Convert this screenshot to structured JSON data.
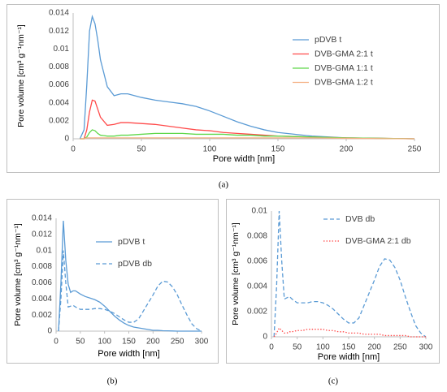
{
  "chart_data": [
    {
      "type": "line",
      "caption": "(a)",
      "xlabel": "Pore width [nm]",
      "ylabel": "Pore volume [cm³ g⁻¹nm⁻¹]",
      "x": [
        5,
        8,
        10,
        12,
        14,
        16,
        18,
        20,
        25,
        30,
        35,
        40,
        50,
        60,
        70,
        80,
        90,
        100,
        110,
        120,
        130,
        140,
        150,
        175,
        200,
        225,
        250
      ],
      "xlim": [
        0,
        250
      ],
      "xticks": [
        0,
        50,
        100,
        150,
        200,
        250
      ],
      "ylim": [
        0,
        0.014
      ],
      "yticks": [
        0,
        0.002,
        0.004,
        0.006,
        0.008,
        0.01,
        0.012,
        0.014
      ],
      "series": [
        {
          "name": "pDVB t",
          "color": "#5b9bd5",
          "line_style": "solid",
          "values": [
            0,
            0.001,
            0.006,
            0.012,
            0.0136,
            0.0128,
            0.011,
            0.0088,
            0.0058,
            0.0048,
            0.005,
            0.005,
            0.0046,
            0.0043,
            0.0041,
            0.0039,
            0.0036,
            0.0031,
            0.0025,
            0.0019,
            0.0014,
            0.001,
            0.0007,
            0.0003,
            0.0001,
            4e-05,
            0
          ]
        },
        {
          "name": "DVB-GMA 2:1 t",
          "color": "#ff4b4b",
          "line_style": "solid",
          "values": [
            0,
            0,
            0.001,
            0.003,
            0.0043,
            0.0042,
            0.0033,
            0.0024,
            0.0015,
            0.0016,
            0.0018,
            0.0018,
            0.0017,
            0.0016,
            0.0014,
            0.0012,
            0.001,
            0.0009,
            0.0007,
            0.0006,
            0.0005,
            0.0004,
            0.0003,
            0.0002,
            0.0001,
            5e-05,
            0
          ]
        },
        {
          "name": "DVB-GMA 1:1 t",
          "color": "#5fd84a",
          "line_style": "solid",
          "values": [
            0,
            0,
            0.0002,
            0.0007,
            0.001,
            0.0009,
            0.0006,
            0.0004,
            0.0003,
            0.0003,
            0.0004,
            0.0004,
            0.0005,
            0.0006,
            0.0006,
            0.0006,
            0.0005,
            0.0005,
            0.0005,
            0.0004,
            0.0004,
            0.0003,
            0.0003,
            0.0002,
            0.0001,
            5e-05,
            0
          ]
        },
        {
          "name": "DVB-GMA 1:2 t",
          "color": "#f4b183",
          "line_style": "solid",
          "values": [
            0,
            0,
            0.0001,
            0.0001,
            0.0001,
            0.0001,
            0.0001,
            0.0001,
            0.0001,
            0.0001,
            0.0001,
            0.0001,
            0.0001,
            0.0001,
            0.0001,
            0.0001,
            0.0001,
            0.0001,
            0.0001,
            0.0001,
            0.0001,
            0.0001,
            0.0001,
            0.0001,
            5e-05,
            2e-05,
            0
          ]
        }
      ]
    },
    {
      "type": "line",
      "caption": "(b)",
      "xlabel": "Pore width [nm]",
      "ylabel": "Pore volume [cm³ g⁻¹nm⁻¹]",
      "x": [
        5,
        10,
        15,
        20,
        25,
        30,
        35,
        40,
        50,
        60,
        70,
        80,
        90,
        100,
        110,
        120,
        130,
        140,
        150,
        160,
        170,
        180,
        190,
        200,
        210,
        220,
        230,
        240,
        250,
        260,
        270,
        280,
        290,
        300
      ],
      "xlim": [
        0,
        300
      ],
      "xticks": [
        0,
        50,
        100,
        150,
        200,
        250,
        300
      ],
      "ylim": [
        0,
        0.014
      ],
      "yticks": [
        0,
        0.002,
        0.004,
        0.006,
        0.008,
        0.01,
        0.012,
        0.014
      ],
      "series": [
        {
          "name": "pDVB t",
          "color": "#5b9bd5",
          "line_style": "solid",
          "values": [
            0,
            0.006,
            0.0137,
            0.0088,
            0.0058,
            0.0048,
            0.005,
            0.005,
            0.0046,
            0.0043,
            0.0041,
            0.0039,
            0.0036,
            0.0031,
            0.0025,
            0.0019,
            0.0014,
            0.001,
            0.0007,
            0.0005,
            0.0004,
            0.0003,
            0.0002,
            0.0001,
            0.0001,
            5e-05,
            4e-05,
            2e-05,
            0,
            0,
            0,
            0,
            0,
            0
          ]
        },
        {
          "name": "pDVB db",
          "color": "#5b9bd5",
          "line_style": "dashed",
          "values": [
            0,
            0.004,
            0.01,
            0.006,
            0.003,
            0.0031,
            0.0032,
            0.003,
            0.0027,
            0.0027,
            0.0027,
            0.0028,
            0.0028,
            0.0027,
            0.0025,
            0.0022,
            0.0018,
            0.0014,
            0.0011,
            0.0011,
            0.0015,
            0.0025,
            0.0035,
            0.0045,
            0.0056,
            0.0062,
            0.0061,
            0.0055,
            0.0045,
            0.0032,
            0.002,
            0.0009,
            0.0003,
            0
          ]
        }
      ]
    },
    {
      "type": "line",
      "caption": "(c)",
      "xlabel": "Pore width [nm]",
      "ylabel": "Pore volume [cm³ g⁻¹nm⁻¹]",
      "x": [
        5,
        10,
        15,
        20,
        25,
        30,
        35,
        40,
        50,
        60,
        70,
        80,
        90,
        100,
        110,
        120,
        130,
        140,
        150,
        160,
        170,
        180,
        190,
        200,
        210,
        220,
        230,
        240,
        250,
        260,
        270,
        280,
        290,
        300
      ],
      "xlim": [
        0,
        300
      ],
      "xticks": [
        0,
        50,
        100,
        150,
        200,
        250,
        300
      ],
      "ylim": [
        0,
        0.01
      ],
      "yticks": [
        0,
        0.002,
        0.004,
        0.006,
        0.008,
        0.01
      ],
      "series": [
        {
          "name": "DVB db",
          "color": "#5b9bd5",
          "line_style": "dashed",
          "values": [
            0,
            0.004,
            0.01,
            0.006,
            0.003,
            0.0031,
            0.0032,
            0.003,
            0.0027,
            0.0027,
            0.0027,
            0.0028,
            0.0028,
            0.0027,
            0.0025,
            0.0022,
            0.0018,
            0.0014,
            0.0011,
            0.0011,
            0.0015,
            0.0025,
            0.0035,
            0.0045,
            0.0056,
            0.0062,
            0.0061,
            0.0055,
            0.0045,
            0.0032,
            0.002,
            0.0009,
            0.0003,
            0
          ]
        },
        {
          "name": "DVB-GMA 2:1 db",
          "color": "#ff4b4b",
          "line_style": "dotted",
          "values": [
            0,
            0.0003,
            0.0007,
            0.0005,
            0.0003,
            0.0003,
            0.0004,
            0.0004,
            0.0005,
            0.0005,
            0.0006,
            0.0006,
            0.0006,
            0.0006,
            0.0005,
            0.0005,
            0.0004,
            0.0004,
            0.0003,
            0.0003,
            0.0003,
            0.0002,
            0.0002,
            0.0002,
            0.0002,
            0.0001,
            0.0001,
            0.0001,
            0.0001,
            0.0001,
            0,
            0,
            0,
            0
          ]
        }
      ]
    }
  ]
}
